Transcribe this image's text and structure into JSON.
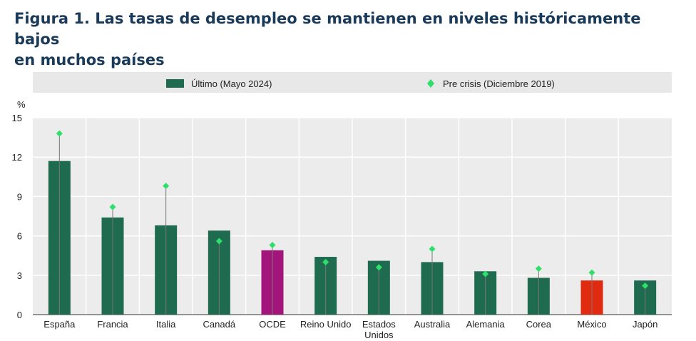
{
  "title": {
    "line1": "Figura 1. Las tasas de desempleo se mantienen en niveles históricamente bajos",
    "line2": "en muchos países"
  },
  "chart_data": {
    "type": "bar",
    "unit": "%",
    "categories": [
      [
        "España"
      ],
      [
        "Francia"
      ],
      [
        "Italia"
      ],
      [
        "Canadá"
      ],
      [
        "OCDE"
      ],
      [
        "Reino Unido"
      ],
      [
        "Estados",
        "Unidos"
      ],
      [
        "Australia"
      ],
      [
        "Alemania"
      ],
      [
        "Corea"
      ],
      [
        "México"
      ],
      [
        "Japón"
      ]
    ],
    "series": [
      {
        "name": "Último (Mayo 2024)",
        "kind": "bar",
        "values": [
          11.7,
          7.4,
          6.8,
          6.4,
          4.9,
          4.4,
          4.1,
          4.0,
          3.3,
          2.8,
          2.6,
          2.6
        ],
        "color": "#1f6b4f",
        "highlight_colors": {
          "4": "#a3157b",
          "10": "#e02b10"
        }
      },
      {
        "name": "Pre crisis (Diciembre 2019)",
        "kind": "marker",
        "values": [
          13.8,
          8.2,
          9.8,
          5.6,
          5.3,
          4.0,
          3.6,
          5.0,
          3.1,
          3.5,
          3.2,
          2.2
        ],
        "color": "#2ee06a"
      }
    ],
    "ylim": [
      0,
      15
    ],
    "yticks": [
      0,
      3,
      6,
      9,
      12,
      15
    ],
    "grid": true,
    "legend_position": "top"
  }
}
